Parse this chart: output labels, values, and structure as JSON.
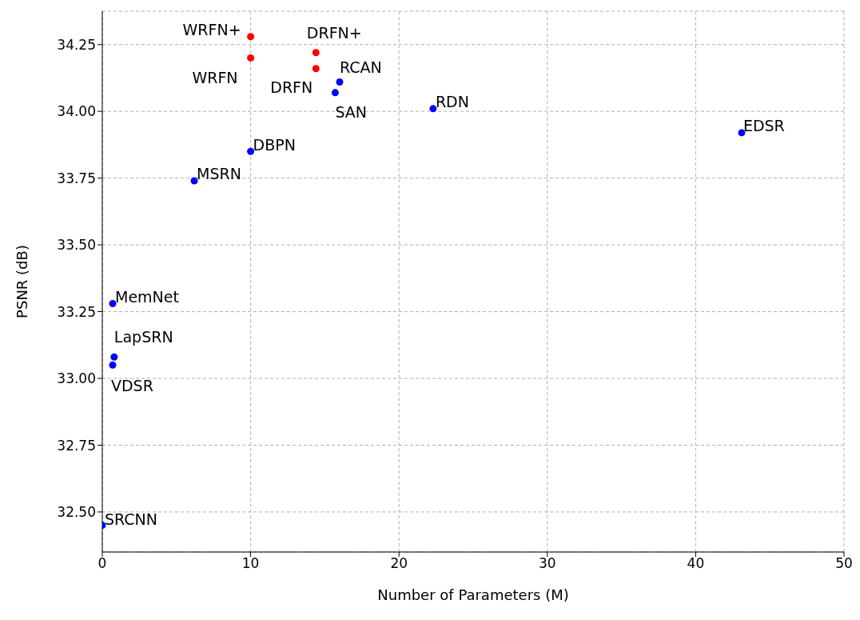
{
  "chart_data": {
    "type": "scatter",
    "xlabel": "Number of Parameters (M)",
    "ylabel": "PSNR (dB)",
    "series": [
      {
        "color": "#ff0000",
        "x": [
          10.0,
          10.0,
          14.4,
          14.4
        ],
        "values": [
          34.28,
          34.2,
          34.22,
          34.16
        ]
      },
      {
        "color": "#0000ff",
        "x": [
          16.0,
          15.7,
          22.3,
          43.1,
          10.0,
          6.2,
          0.7,
          0.8,
          0.7,
          0.0
        ],
        "values": [
          34.11,
          34.07,
          34.01,
          33.92,
          33.85,
          33.74,
          33.28,
          33.08,
          33.05,
          32.45
        ]
      }
    ],
    "annotations": [
      {
        "text": "WRFN+",
        "x": 10.0,
        "y": 34.28
      },
      {
        "text": "WRFN",
        "x": 10.0,
        "y": 34.2
      },
      {
        "text": "DRFN+",
        "x": 14.4,
        "y": 34.22
      },
      {
        "text": "DRFN",
        "x": 14.4,
        "y": 34.16
      },
      {
        "text": "RCAN",
        "x": 16.0,
        "y": 34.11
      },
      {
        "text": "SAN",
        "x": 15.7,
        "y": 34.07
      },
      {
        "text": "RDN",
        "x": 22.3,
        "y": 34.01
      },
      {
        "text": "EDSR",
        "x": 43.1,
        "y": 33.92
      },
      {
        "text": "DBPN",
        "x": 10.0,
        "y": 33.85
      },
      {
        "text": "MSRN",
        "x": 6.2,
        "y": 33.74
      },
      {
        "text": "MemNet",
        "x": 0.7,
        "y": 33.28
      },
      {
        "text": "LapSRN",
        "x": 0.8,
        "y": 33.08
      },
      {
        "text": "VDSR",
        "x": 0.7,
        "y": 33.05
      },
      {
        "text": "SRCNN",
        "x": 0.0,
        "y": 32.45
      }
    ],
    "xlim": [
      0,
      50
    ],
    "xticks": [
      0,
      10,
      20,
      30,
      40,
      50
    ],
    "ylim": [
      32.35,
      34.375
    ],
    "yticks": [
      {
        "value": 32.5,
        "label": "32.50"
      },
      {
        "value": 32.75,
        "label": "32.75"
      },
      {
        "value": 33.0,
        "label": "33.00"
      },
      {
        "value": 33.25,
        "label": "33.25"
      },
      {
        "value": 33.5,
        "label": "33.50"
      },
      {
        "value": 33.75,
        "label": "33.75"
      },
      {
        "value": 34.0,
        "label": "34.00"
      },
      {
        "value": 34.25,
        "label": "34.25"
      }
    ],
    "grid": true,
    "marker": "circle",
    "legend": false
  }
}
